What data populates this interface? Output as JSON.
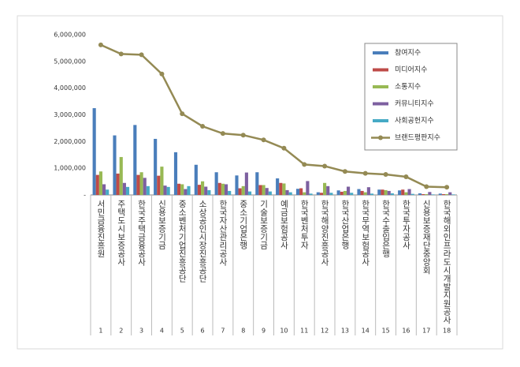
{
  "chart_data": {
    "type": "bar_line",
    "categories": [
      "서민금융진흥원",
      "주택도시보증공사",
      "한국주택금융공사",
      "신용보증기금",
      "중소벤처기업진흥공단",
      "소상공인시장진흥공단",
      "한국자산관리공사",
      "중소기업은행",
      "기술보증기금",
      "예금보험공사",
      "한국벤처투자",
      "한국해양진흥공사",
      "한국산업은행",
      "한국무역보험공사",
      "한국수출입은행",
      "한국투자공사",
      "신용보증재단중앙회",
      "한국해외인프라도시개발지원공사"
    ],
    "category_numbers": [
      1,
      2,
      3,
      4,
      5,
      6,
      7,
      8,
      9,
      10,
      11,
      12,
      13,
      14,
      15,
      16,
      17,
      18
    ],
    "series": [
      {
        "name": "참여지수",
        "color": "#4a7ebb",
        "kind": "bar",
        "values": [
          3250000,
          2230000,
          2620000,
          2100000,
          1600000,
          1130000,
          850000,
          730000,
          850000,
          620000,
          230000,
          100000,
          170000,
          220000,
          200000,
          170000,
          60000,
          50000
        ]
      },
      {
        "name": "미디어지수",
        "color": "#be4b48",
        "kind": "bar",
        "values": [
          750000,
          800000,
          750000,
          720000,
          420000,
          380000,
          450000,
          250000,
          370000,
          450000,
          250000,
          80000,
          120000,
          150000,
          200000,
          200000,
          30000,
          30000
        ]
      },
      {
        "name": "소통지수",
        "color": "#98b954",
        "kind": "bar",
        "values": [
          880000,
          1420000,
          850000,
          1060000,
          400000,
          510000,
          420000,
          330000,
          370000,
          430000,
          100000,
          450000,
          150000,
          100000,
          180000,
          100000,
          30000,
          30000
        ]
      },
      {
        "name": "커뮤니티지수",
        "color": "#7d60a0",
        "kind": "bar",
        "values": [
          400000,
          450000,
          640000,
          350000,
          220000,
          310000,
          400000,
          840000,
          260000,
          180000,
          520000,
          330000,
          310000,
          290000,
          150000,
          220000,
          110000,
          100000
        ]
      },
      {
        "name": "사회공헌지수",
        "color": "#46aac5",
        "kind": "bar",
        "values": [
          200000,
          300000,
          330000,
          300000,
          330000,
          180000,
          150000,
          130000,
          130000,
          100000,
          50000,
          80000,
          80000,
          50000,
          60000,
          40000,
          20000,
          20000
        ]
      },
      {
        "name": "브랜드평판지수",
        "color": "#948a54",
        "kind": "line",
        "values": [
          5620000,
          5280000,
          5250000,
          4530000,
          3040000,
          2570000,
          2300000,
          2240000,
          2060000,
          1750000,
          1140000,
          1080000,
          880000,
          810000,
          770000,
          680000,
          310000,
          290000
        ]
      }
    ],
    "ylim": [
      0,
      6000000
    ],
    "yticks": [
      {
        "value": 0,
        "label": "-"
      },
      {
        "value": 1000000,
        "label": "1,000,000"
      },
      {
        "value": 2000000,
        "label": "2,000,000"
      },
      {
        "value": 3000000,
        "label": "3,000,000"
      },
      {
        "value": 4000000,
        "label": "4,000,000"
      },
      {
        "value": 5000000,
        "label": "5,000,000"
      },
      {
        "value": 6000000,
        "label": "6,000,000"
      }
    ],
    "grid": false
  }
}
